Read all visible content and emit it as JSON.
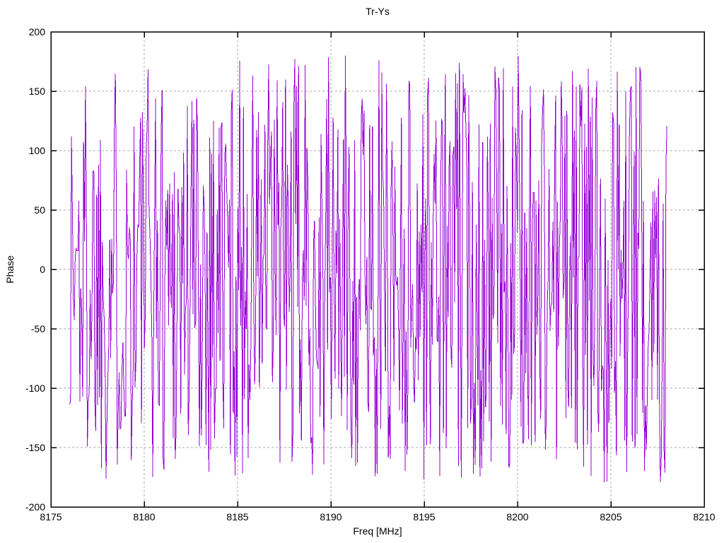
{
  "chart_data": {
    "type": "line",
    "title": "Tr-Ys",
    "xlabel": "Freq [MHz]",
    "ylabel": "Phase",
    "xlim": [
      8175,
      8210
    ],
    "ylim": [
      -200,
      200
    ],
    "x_ticks": [
      8175,
      8180,
      8185,
      8190,
      8195,
      8200,
      8205,
      8210
    ],
    "y_ticks": [
      -200,
      -150,
      -100,
      -50,
      0,
      50,
      100,
      150,
      200
    ],
    "grid": true,
    "legend_position": "none",
    "series": [
      {
        "name": "Tr-Ys",
        "color": "#9400D3",
        "x_start": 8176.0,
        "x_end": 8208.0,
        "n_points": 640,
        "y_min": -180,
        "y_max": 180,
        "y_model": "noise-like wrapped phase, approximately uniform random in [-180, 180] degrees; individual samples not resolvable from the image",
        "prng": {
          "algorithm": "mulberry32",
          "seed": 1337
        }
      }
    ]
  },
  "style": {
    "line_color": "#9400D3",
    "grid_color": "#a8a8a8",
    "axis_color": "#000000",
    "text_color": "#000000",
    "background": "#ffffff"
  }
}
